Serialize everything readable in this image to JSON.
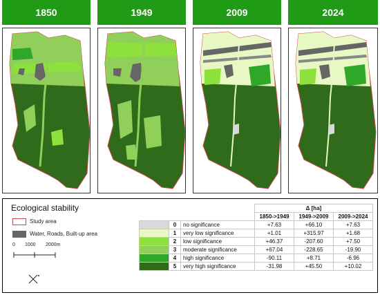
{
  "years": [
    "1850",
    "1949",
    "2009",
    "2024"
  ],
  "legend": {
    "title": "Ecological stability",
    "study_area": "Study area",
    "water_roads": "Water, Roads, Built-up area",
    "scale": [
      "0",
      "1000",
      "2000m"
    ],
    "delta_header": "Δ [ha]",
    "periods": [
      "1850->1949",
      "1949->2009",
      "2009->2024"
    ],
    "classes": [
      {
        "code": "0",
        "label": "no significance",
        "color": "#d9d9d9",
        "values": [
          "+7.63",
          "+66.10",
          "+7.63"
        ]
      },
      {
        "code": "1",
        "label": "very low significance",
        "color": "#e8f8c4",
        "values": [
          "+1.01",
          "+315.97",
          "+1.68"
        ]
      },
      {
        "code": "2",
        "label": "low significance",
        "color": "#8ee03c",
        "values": [
          "+46.37",
          "-207.60",
          "+7.50"
        ]
      },
      {
        "code": "3",
        "label": "moderate significance",
        "color": "#8fcf5a",
        "values": [
          "+67.04",
          "-228.65",
          "-19.90"
        ]
      },
      {
        "code": "4",
        "label": "high significance",
        "color": "#2fa82a",
        "values": [
          "-90.11",
          "+8.71",
          "-6.96"
        ]
      },
      {
        "code": "5",
        "label": "very high significance",
        "color": "#2f6b1a",
        "values": [
          "-31.98",
          "+45.50",
          "+10.02"
        ]
      }
    ]
  }
}
